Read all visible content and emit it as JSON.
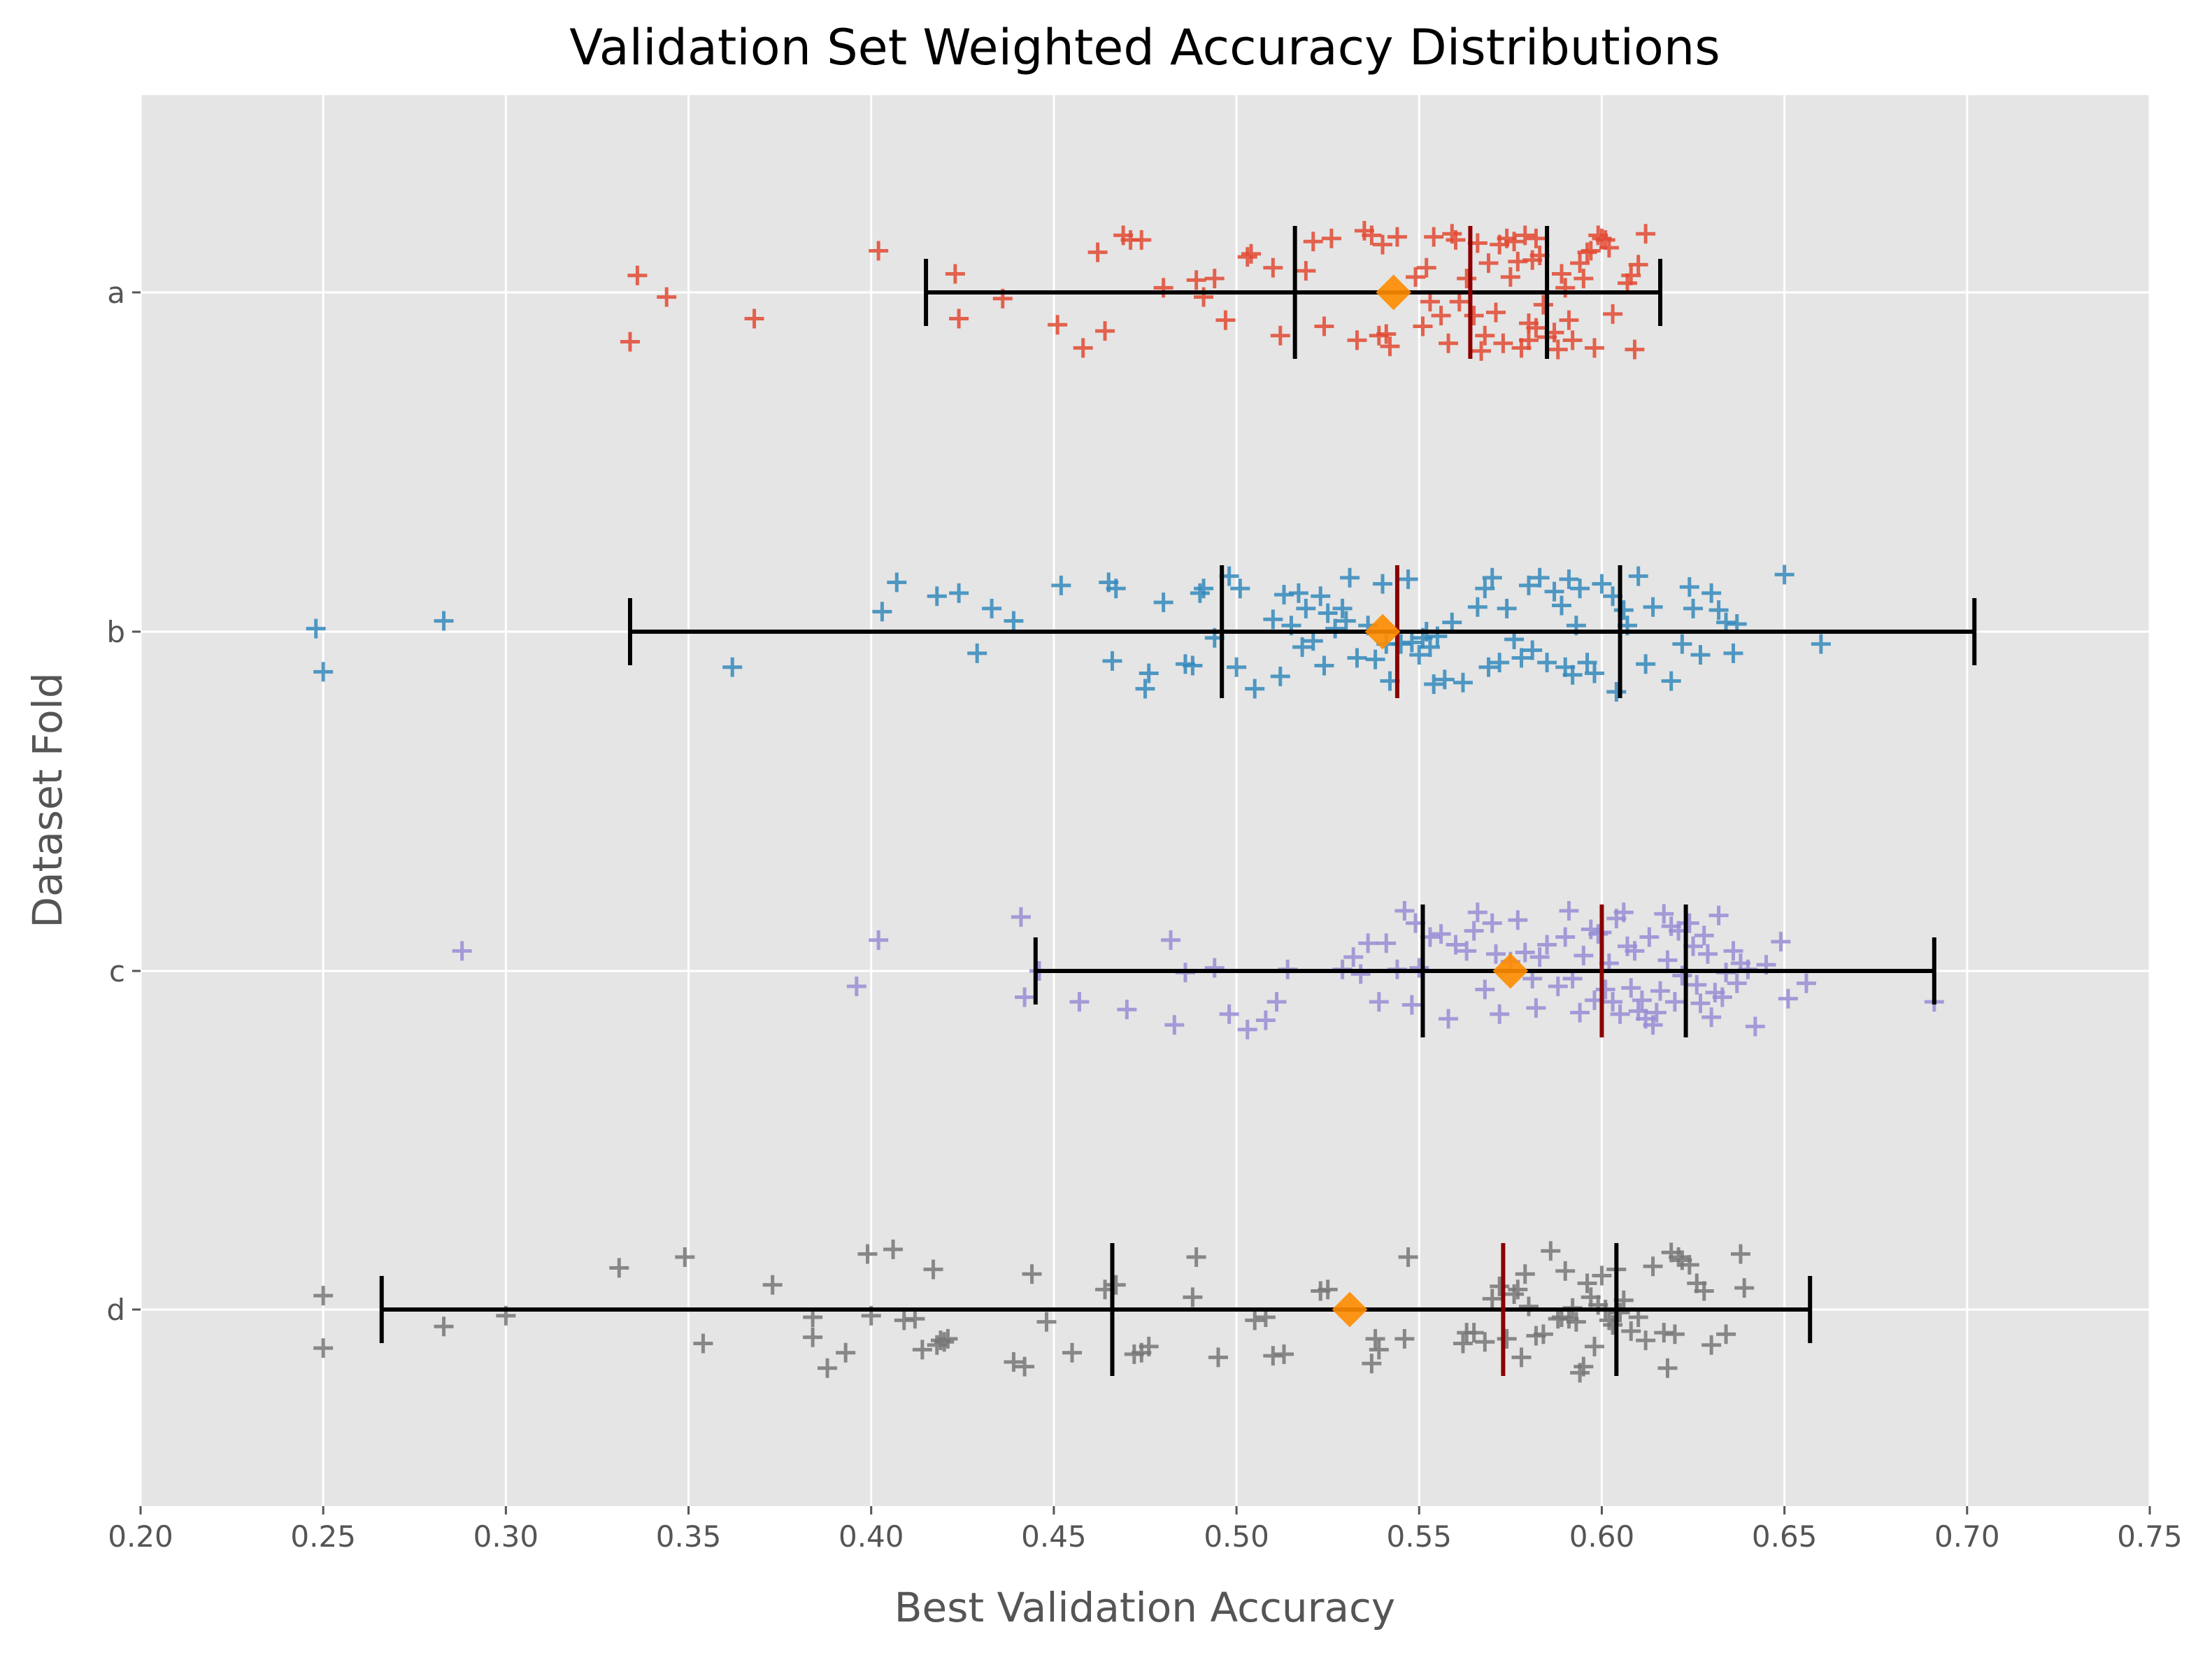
{
  "chart_data": {
    "type": "scatter",
    "title": "Validation Set Weighted Accuracy Distributions",
    "xlabel": "Best Validation Accuracy",
    "ylabel": "Dataset Fold",
    "xlim": [
      0.2,
      0.75
    ],
    "x_ticks": [
      "0.20",
      "0.25",
      "0.30",
      "0.35",
      "0.40",
      "0.45",
      "0.50",
      "0.55",
      "0.60",
      "0.65",
      "0.70",
      "0.75"
    ],
    "categories": [
      "a",
      "b",
      "c",
      "d"
    ],
    "grid": true,
    "legend": "none",
    "marker": "+",
    "colors": {
      "background": "#e5e5e5",
      "grid": "#ffffff",
      "whisker": "#000000",
      "median": "#8b0000",
      "mean": "#ff8c00",
      "series": [
        "#e24a33",
        "#348abd",
        "#988ed5",
        "#777777"
      ]
    },
    "series": [
      {
        "category": "a",
        "summary": {
          "min": 0.415,
          "q1": 0.516,
          "mean": 0.543,
          "median": 0.564,
          "q3": 0.585,
          "max": 0.616
        },
        "values": [
          0.334,
          0.336,
          0.344,
          0.368,
          0.402,
          0.423,
          0.424,
          0.436,
          0.451,
          0.458,
          0.462,
          0.464,
          0.469,
          0.471,
          0.474,
          0.48,
          0.489,
          0.491,
          0.494,
          0.497,
          0.503,
          0.504,
          0.51,
          0.512,
          0.519,
          0.521,
          0.524,
          0.526,
          0.533,
          0.535,
          0.537,
          0.539,
          0.54,
          0.541,
          0.542,
          0.544,
          0.549,
          0.551,
          0.552,
          0.553,
          0.554,
          0.556,
          0.558,
          0.559,
          0.56,
          0.561,
          0.563,
          0.565,
          0.566,
          0.567,
          0.568,
          0.569,
          0.571,
          0.572,
          0.573,
          0.574,
          0.575,
          0.576,
          0.577,
          0.578,
          0.579,
          0.58,
          0.58,
          0.581,
          0.582,
          0.582,
          0.583,
          0.584,
          0.585,
          0.587,
          0.588,
          0.589,
          0.59,
          0.591,
          0.592,
          0.594,
          0.595,
          0.596,
          0.597,
          0.598,
          0.599,
          0.6,
          0.601,
          0.602,
          0.603,
          0.607,
          0.608,
          0.609,
          0.61,
          0.612
        ],
        "jitter": [
          -0.32,
          0.11,
          -0.03,
          -0.17,
          0.27,
          0.12,
          -0.17,
          -0.04,
          -0.21,
          -0.36,
          0.26,
          -0.25,
          0.37,
          0.34,
          0.34,
          0.03,
          0.08,
          -0.03,
          0.09,
          -0.18,
          0.23,
          0.25,
          0.16,
          -0.28,
          0.14,
          0.33,
          -0.22,
          0.35,
          -0.31,
          0.4,
          0.37,
          -0.28,
          0.31,
          -0.27,
          -0.35,
          0.36,
          0.1,
          -0.22,
          0.16,
          -0.06,
          0.36,
          -0.15,
          -0.33,
          0.38,
          0.34,
          -0.06,
          0.09,
          -0.15,
          0.32,
          -0.38,
          -0.28,
          0.19,
          -0.13,
          0.31,
          -0.33,
          0.35,
          0.1,
          0.33,
          0.2,
          -0.36,
          0.37,
          -0.2,
          -0.31,
          0.21,
          0.35,
          -0.23,
          0.24,
          -0.08,
          -0.29,
          -0.26,
          -0.37,
          0.12,
          0.03,
          -0.18,
          -0.31,
          0.19,
          0.09,
          0.26,
          0.27,
          -0.36,
          0.37,
          0.35,
          0.34,
          0.29,
          -0.14,
          0.06,
          0.11,
          -0.37,
          0.18,
          0.38
        ]
      },
      {
        "category": "b",
        "summary": {
          "min": 0.334,
          "q1": 0.496,
          "mean": 0.54,
          "median": 0.544,
          "q3": 0.605,
          "max": 0.702
        },
        "values": [
          0.248,
          0.25,
          0.283,
          0.362,
          0.403,
          0.407,
          0.418,
          0.424,
          0.429,
          0.433,
          0.439,
          0.452,
          0.465,
          0.466,
          0.467,
          0.475,
          0.476,
          0.48,
          0.486,
          0.488,
          0.49,
          0.491,
          0.494,
          0.498,
          0.5,
          0.501,
          0.505,
          0.51,
          0.512,
          0.513,
          0.515,
          0.517,
          0.518,
          0.519,
          0.521,
          0.523,
          0.524,
          0.525,
          0.527,
          0.529,
          0.53,
          0.531,
          0.533,
          0.536,
          0.538,
          0.54,
          0.541,
          0.542,
          0.545,
          0.547,
          0.548,
          0.55,
          0.551,
          0.552,
          0.553,
          0.554,
          0.555,
          0.557,
          0.559,
          0.562,
          0.566,
          0.568,
          0.569,
          0.57,
          0.572,
          0.574,
          0.576,
          0.578,
          0.58,
          0.581,
          0.583,
          0.585,
          0.587,
          0.589,
          0.59,
          0.591,
          0.592,
          0.593,
          0.594,
          0.596,
          0.598,
          0.6,
          0.603,
          0.604,
          0.606,
          0.607,
          0.61,
          0.612,
          0.614,
          0.619,
          0.622,
          0.624,
          0.625,
          0.627,
          0.63,
          0.632,
          0.634,
          0.636,
          0.637,
          0.65,
          0.66
        ],
        "jitter": [
          0.02,
          -0.26,
          0.07,
          -0.23,
          0.13,
          0.32,
          0.23,
          0.25,
          -0.14,
          0.15,
          0.07,
          0.3,
          0.32,
          -0.19,
          0.28,
          -0.37,
          -0.27,
          0.19,
          -0.21,
          -0.22,
          0.25,
          0.28,
          -0.04,
          0.36,
          -0.23,
          0.28,
          -0.37,
          0.08,
          -0.29,
          0.24,
          0.04,
          0.25,
          -0.1,
          0.15,
          -0.06,
          0.23,
          -0.22,
          0.12,
          0.02,
          0.15,
          0.07,
          0.35,
          -0.17,
          0.04,
          -0.18,
          0.31,
          -0.08,
          -0.32,
          -0.08,
          0.34,
          -0.07,
          -0.15,
          -0.04,
          0.0,
          -0.1,
          -0.34,
          -0.03,
          -0.31,
          0.06,
          -0.33,
          0.16,
          0.28,
          -0.23,
          0.35,
          -0.2,
          0.15,
          -0.05,
          -0.17,
          0.3,
          -0.12,
          0.35,
          -0.2,
          0.26,
          0.17,
          -0.23,
          0.34,
          -0.28,
          0.04,
          0.28,
          -0.2,
          -0.27,
          0.31,
          0.23,
          -0.39,
          0.14,
          0.04,
          0.36,
          -0.21,
          0.16,
          -0.32,
          -0.08,
          0.29,
          0.15,
          -0.15,
          0.25,
          0.14,
          0.06,
          -0.14,
          0.05,
          0.37,
          -0.08
        ]
      },
      {
        "category": "c",
        "summary": {
          "min": 0.445,
          "q1": 0.551,
          "mean": 0.575,
          "median": 0.6,
          "q3": 0.623,
          "max": 0.691
        },
        "values": [
          0.288,
          0.396,
          0.402,
          0.441,
          0.442,
          0.446,
          0.457,
          0.47,
          0.482,
          0.483,
          0.486,
          0.494,
          0.498,
          0.503,
          0.508,
          0.511,
          0.514,
          0.529,
          0.532,
          0.534,
          0.536,
          0.539,
          0.541,
          0.544,
          0.546,
          0.548,
          0.549,
          0.55,
          0.553,
          0.556,
          0.558,
          0.56,
          0.563,
          0.565,
          0.566,
          0.568,
          0.57,
          0.571,
          0.572,
          0.575,
          0.577,
          0.579,
          0.581,
          0.582,
          0.583,
          0.585,
          0.588,
          0.59,
          0.591,
          0.592,
          0.594,
          0.595,
          0.597,
          0.598,
          0.599,
          0.6,
          0.601,
          0.602,
          0.603,
          0.604,
          0.605,
          0.606,
          0.607,
          0.608,
          0.609,
          0.61,
          0.611,
          0.612,
          0.613,
          0.614,
          0.615,
          0.616,
          0.617,
          0.618,
          0.619,
          0.62,
          0.621,
          0.622,
          0.624,
          0.625,
          0.626,
          0.627,
          0.628,
          0.629,
          0.63,
          0.631,
          0.632,
          0.633,
          0.634,
          0.636,
          0.637,
          0.638,
          0.64,
          0.642,
          0.645,
          0.649,
          0.651,
          0.656,
          0.691
        ],
        "jitter": [
          0.13,
          -0.1,
          0.2,
          0.35,
          -0.17,
          -0.0,
          -0.2,
          -0.25,
          0.2,
          -0.35,
          -0.01,
          0.02,
          -0.28,
          -0.38,
          -0.32,
          -0.2,
          0.01,
          0.01,
          0.09,
          -0.02,
          0.18,
          -0.2,
          0.18,
          0.01,
          0.39,
          -0.22,
          0.31,
          0.02,
          0.22,
          0.24,
          -0.31,
          0.17,
          0.13,
          0.26,
          0.38,
          -0.12,
          0.31,
          0.11,
          -0.28,
          0.06,
          0.33,
          0.12,
          -0.05,
          -0.24,
          0.09,
          0.17,
          -0.1,
          0.22,
          0.39,
          -0.05,
          -0.27,
          0.1,
          0.27,
          -0.19,
          0.24,
          0.25,
          -0.12,
          0.05,
          -0.2,
          0.34,
          -0.28,
          0.38,
          0.16,
          -0.11,
          0.13,
          -0.26,
          -0.19,
          -0.31,
          0.22,
          -0.35,
          -0.27,
          -0.13,
          0.37,
          0.07,
          0.29,
          -0.2,
          0.26,
          -0.03,
          0.31,
          0.16,
          -0.09,
          -0.21,
          0.23,
          0.11,
          -0.3,
          -0.14,
          0.36,
          -0.17,
          -0.01,
          0.13,
          -0.08,
          0.05,
          0.01,
          -0.36,
          0.04,
          0.19,
          -0.18,
          -0.08,
          -0.2
        ]
      },
      {
        "category": "d",
        "summary": {
          "min": 0.266,
          "q1": 0.466,
          "mean": 0.531,
          "median": 0.573,
          "q3": 0.604,
          "max": 0.657
        },
        "values": [
          0.25,
          0.25,
          0.283,
          0.3,
          0.331,
          0.349,
          0.354,
          0.373,
          0.384,
          0.384,
          0.388,
          0.393,
          0.399,
          0.4,
          0.406,
          0.409,
          0.412,
          0.414,
          0.417,
          0.418,
          0.419,
          0.42,
          0.421,
          0.439,
          0.442,
          0.444,
          0.448,
          0.455,
          0.464,
          0.467,
          0.472,
          0.474,
          0.476,
          0.488,
          0.489,
          0.495,
          0.505,
          0.508,
          0.51,
          0.513,
          0.523,
          0.525,
          0.537,
          0.538,
          0.539,
          0.546,
          0.547,
          0.562,
          0.563,
          0.565,
          0.568,
          0.57,
          0.572,
          0.574,
          0.576,
          0.577,
          0.578,
          0.579,
          0.58,
          0.582,
          0.584,
          0.586,
          0.588,
          0.589,
          0.59,
          0.591,
          0.592,
          0.593,
          0.594,
          0.595,
          0.596,
          0.597,
          0.598,
          0.599,
          0.6,
          0.601,
          0.602,
          0.603,
          0.604,
          0.605,
          0.606,
          0.608,
          0.61,
          0.612,
          0.614,
          0.617,
          0.618,
          0.619,
          0.62,
          0.621,
          0.622,
          0.624,
          0.626,
          0.628,
          0.63,
          0.634,
          0.638,
          0.639
        ],
        "jitter": [
          0.09,
          -0.25,
          -0.11,
          -0.04,
          0.27,
          0.34,
          -0.22,
          0.16,
          -0.05,
          -0.18,
          -0.38,
          -0.28,
          0.36,
          -0.04,
          0.39,
          -0.07,
          -0.06,
          -0.26,
          0.26,
          -0.23,
          -0.2,
          -0.21,
          -0.19,
          -0.34,
          -0.37,
          0.23,
          -0.08,
          -0.28,
          0.13,
          0.16,
          -0.29,
          -0.28,
          -0.24,
          0.08,
          0.34,
          -0.31,
          -0.07,
          -0.05,
          -0.3,
          -0.29,
          0.12,
          0.13,
          -0.35,
          -0.19,
          -0.26,
          -0.19,
          0.34,
          -0.22,
          -0.15,
          -0.15,
          -0.21,
          0.07,
          0.15,
          -0.19,
          0.1,
          0.13,
          -0.31,
          0.23,
          0.02,
          -0.17,
          -0.16,
          0.38,
          -0.06,
          -0.05,
          0.25,
          -0.06,
          0.01,
          -0.08,
          -0.41,
          -0.37,
          0.17,
          0.08,
          -0.24,
          0.03,
          0.22,
          0.0,
          -0.07,
          -0.1,
          0.26,
          -0.02,
          0.06,
          -0.14,
          -0.05,
          -0.2,
          0.28,
          -0.15,
          -0.38,
          0.37,
          -0.16,
          0.34,
          0.32,
          0.29,
          0.17,
          0.12,
          -0.23,
          -0.16,
          0.36,
          0.14
        ]
      }
    ]
  }
}
